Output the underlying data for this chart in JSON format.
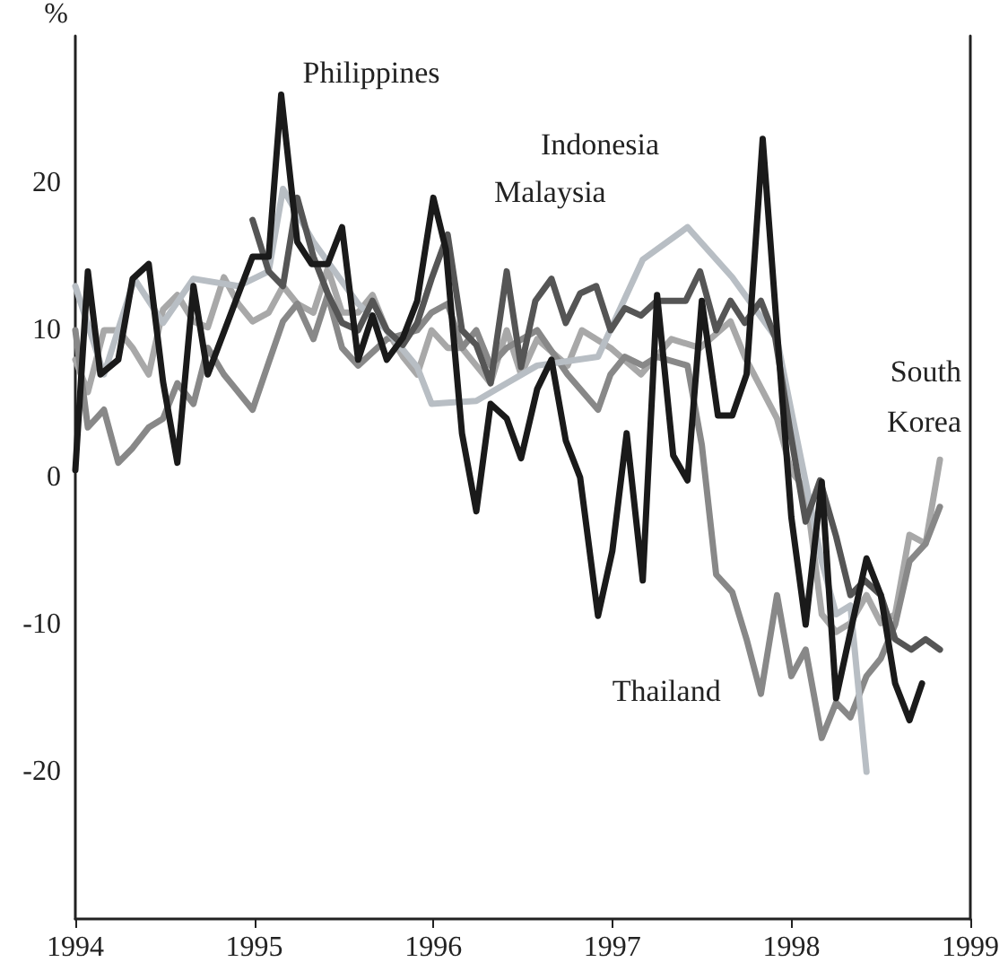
{
  "chart_data": {
    "type": "line",
    "ylabel": "%",
    "xlim": [
      1994,
      1999
    ],
    "xticks": [
      1994,
      1995,
      1996,
      1997,
      1998,
      1999
    ],
    "ylim": [
      -30,
      30
    ],
    "yticks": [
      -20,
      -10,
      0,
      10,
      20
    ],
    "grid": false,
    "legend": false,
    "marker": "none",
    "line_style": "solid",
    "series": [
      {
        "name": "Philippines",
        "color": "#1a1a1a",
        "x": [
          1994.0,
          1994.07,
          1994.14,
          1994.24,
          1994.32,
          1994.41,
          1994.49,
          1994.57,
          1994.66,
          1994.74,
          1994.99,
          1995.08,
          1995.15,
          1995.24,
          1995.32,
          1995.41,
          1995.49,
          1995.58,
          1995.66,
          1995.74,
          1995.83,
          1995.91,
          1996.0,
          1996.07,
          1996.16,
          1996.24,
          1996.32,
          1996.41,
          1996.49,
          1996.58,
          1996.66,
          1996.74,
          1996.82,
          1996.92,
          1997.0,
          1997.08,
          1997.17,
          1997.25,
          1997.34,
          1997.42,
          1997.5,
          1997.59,
          1997.67,
          1997.75,
          1997.84,
          1997.92,
          1998.0,
          1998.08,
          1998.17,
          1998.25,
          1998.33,
          1998.42,
          1998.5,
          1998.58,
          1998.66,
          1998.73
        ],
        "values": [
          0.5,
          14,
          7,
          8,
          13.5,
          14.5,
          6.5,
          1,
          13,
          7,
          15,
          15,
          26,
          16,
          14.5,
          14.5,
          17,
          8,
          11,
          8,
          9.5,
          12,
          19,
          15.5,
          3,
          -2.3,
          5,
          4,
          1.3,
          6,
          8,
          2.5,
          0,
          -9.4,
          -5,
          3,
          -7,
          12.4,
          1.5,
          -0.2,
          12,
          4.2,
          4.2,
          7,
          23,
          10,
          -2.7,
          -10,
          -0.3,
          -15,
          -10.5,
          -5.5,
          -8,
          -14,
          -16.5,
          -14
        ]
      },
      {
        "name": "Malaysia",
        "color": "#555555",
        "x": [
          1994.99,
          1995.08,
          1995.16,
          1995.24,
          1995.33,
          1995.41,
          1995.49,
          1995.58,
          1995.66,
          1995.74,
          1995.83,
          1995.91,
          1995.99,
          1996.08,
          1996.16,
          1996.24,
          1996.32,
          1996.41,
          1996.49,
          1996.57,
          1996.66,
          1996.74,
          1996.82,
          1996.91,
          1996.99,
          1997.07,
          1997.16,
          1997.25,
          1997.33,
          1997.41,
          1997.49,
          1997.58,
          1997.66,
          1997.74,
          1997.83,
          1997.91,
          1997.99,
          1998.08,
          1998.16,
          1998.25,
          1998.33,
          1998.41,
          1998.5,
          1998.58,
          1998.67,
          1998.75,
          1998.83
        ],
        "values": [
          17.5,
          14,
          13,
          19,
          15,
          12.5,
          10.5,
          10,
          12,
          10,
          9,
          10.5,
          13.5,
          16.5,
          10,
          9,
          6.4,
          14,
          7.5,
          12,
          13.5,
          10.5,
          12.5,
          13,
          10,
          11.5,
          11,
          12,
          12,
          12,
          14,
          10,
          12,
          10.5,
          12,
          9.5,
          3.4,
          -3,
          -0.2,
          -4,
          -8,
          -7,
          -8,
          -11,
          -11.7,
          -11,
          -11.7
        ]
      },
      {
        "name": "Indonesia",
        "color": "#b8bec4",
        "x": [
          1994.0,
          1994.16,
          1994.33,
          1994.49,
          1994.66,
          1994.91,
          1995.08,
          1995.16,
          1995.33,
          1995.58,
          1995.74,
          1995.91,
          1995.99,
          1996.24,
          1996.41,
          1996.58,
          1996.92,
          1997.17,
          1997.42,
          1997.67,
          1997.92,
          1998.0,
          1998.17,
          1998.25,
          1998.33,
          1998.42
        ],
        "values": [
          13,
          7,
          13.5,
          10.5,
          13.5,
          13,
          14,
          19.6,
          16,
          11.8,
          10,
          7.5,
          5,
          5.2,
          6.4,
          7.6,
          8.2,
          14.8,
          17,
          13.6,
          9.4,
          4.5,
          -5.7,
          -9.3,
          -8.7,
          -20
        ]
      },
      {
        "name": "Thailand",
        "color": "#888888",
        "x": [
          1994.0,
          1994.07,
          1994.16,
          1994.24,
          1994.32,
          1994.41,
          1994.49,
          1994.57,
          1994.66,
          1994.74,
          1994.83,
          1994.99,
          1995.08,
          1995.16,
          1995.24,
          1995.33,
          1995.41,
          1995.49,
          1995.58,
          1995.74,
          1995.91,
          1995.99,
          1996.08,
          1996.16,
          1996.24,
          1996.32,
          1996.41,
          1996.58,
          1996.75,
          1996.92,
          1996.99,
          1997.07,
          1997.17,
          1997.25,
          1997.42,
          1997.5,
          1997.58,
          1997.67,
          1997.75,
          1997.83,
          1997.92,
          1998.0,
          1998.08,
          1998.17,
          1998.25,
          1998.33,
          1998.42,
          1998.5,
          1998.58,
          1998.66,
          1998.75,
          1998.83
        ],
        "values": [
          10,
          3.4,
          4.6,
          1,
          2,
          3.4,
          4,
          6.4,
          5,
          8.8,
          7,
          4.6,
          7.8,
          10.6,
          11.8,
          9.4,
          12.4,
          8.8,
          7.6,
          9.4,
          10,
          11.2,
          11.8,
          8.8,
          10,
          7.6,
          8.8,
          10,
          7,
          4.6,
          7,
          8.2,
          7.6,
          8.2,
          7.6,
          2.2,
          -6.6,
          -7.8,
          -11,
          -14.7,
          -8,
          -13.5,
          -11.7,
          -17.7,
          -15.3,
          -16.3,
          -13.5,
          -12.3,
          -10,
          -5.7,
          -4.5,
          -2
        ]
      },
      {
        "name": "South Korea",
        "color": "#a8a8a8",
        "x": [
          1994.0,
          1994.07,
          1994.16,
          1994.24,
          1994.32,
          1994.41,
          1994.49,
          1994.57,
          1994.66,
          1994.74,
          1994.83,
          1994.91,
          1994.99,
          1995.08,
          1995.16,
          1995.24,
          1995.33,
          1995.41,
          1995.49,
          1995.58,
          1995.66,
          1995.74,
          1995.83,
          1995.91,
          1995.99,
          1996.08,
          1996.16,
          1996.24,
          1996.32,
          1996.41,
          1996.49,
          1996.58,
          1996.75,
          1996.83,
          1996.99,
          1997.16,
          1997.33,
          1997.49,
          1997.66,
          1997.74,
          1997.92,
          1998.0,
          1998.08,
          1998.17,
          1998.25,
          1998.33,
          1998.42,
          1998.5,
          1998.58,
          1998.66,
          1998.75,
          1998.83
        ],
        "values": [
          8,
          5.8,
          10,
          10,
          8.8,
          7,
          11.4,
          12.4,
          10.6,
          10.2,
          13.6,
          11.8,
          10.6,
          11.2,
          13,
          11.8,
          11.2,
          14.2,
          11.2,
          11.2,
          12.4,
          10,
          8.2,
          7,
          10,
          8.8,
          8.8,
          7.6,
          6.4,
          10,
          7,
          9.4,
          7.6,
          10,
          8.8,
          7,
          9.4,
          8.8,
          10.6,
          8.2,
          4,
          0.4,
          -0.8,
          -9.3,
          -10.5,
          -9.9,
          -8,
          -9.9,
          -9.3,
          -3.9,
          -4.5,
          1.2
        ]
      }
    ]
  }
}
